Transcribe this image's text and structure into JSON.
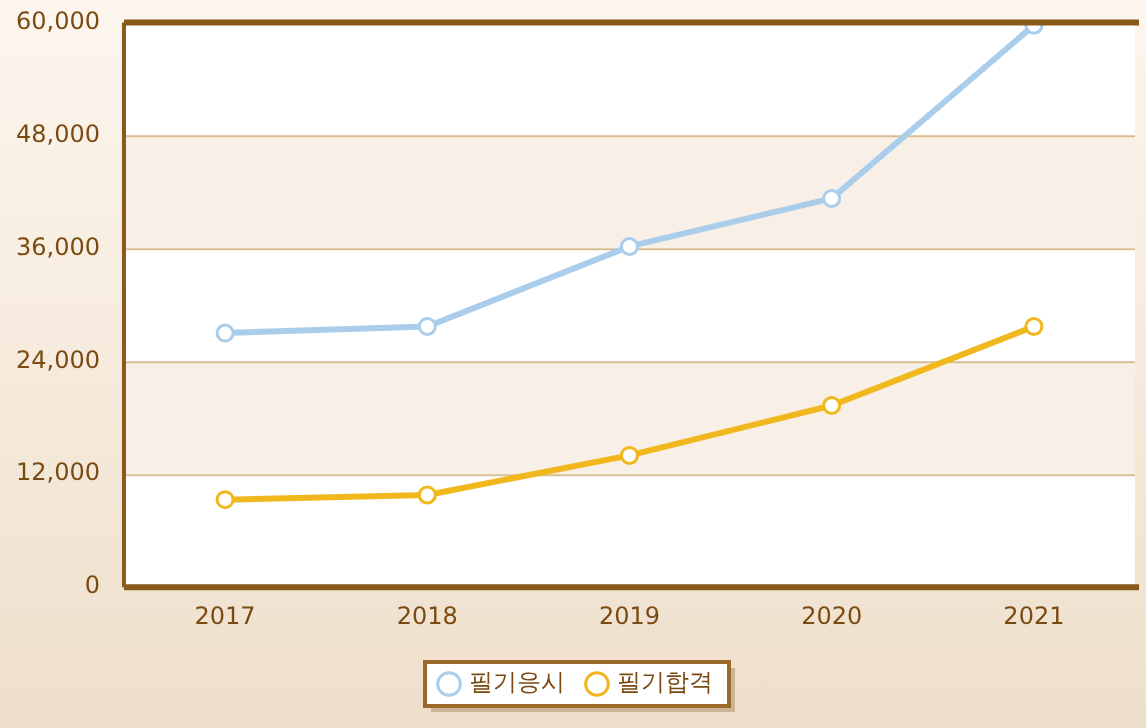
{
  "chart_data": {
    "type": "line",
    "categories": [
      "2017",
      "2018",
      "2019",
      "2020",
      "2021"
    ],
    "series": [
      {
        "name": "필기응시",
        "color": "#a9cdea",
        "values": [
          27000,
          27700,
          36200,
          41300,
          59700
        ]
      },
      {
        "name": "필기합격",
        "color": "#f0b81c",
        "values": [
          9300,
          9800,
          14000,
          19300,
          27700
        ]
      }
    ],
    "ylim": [
      0,
      60000
    ],
    "yticks": [
      {
        "value": 0,
        "label": "0"
      },
      {
        "value": 12000,
        "label": "12,000"
      },
      {
        "value": 24000,
        "label": "24,000"
      },
      {
        "value": 36000,
        "label": "36,000"
      },
      {
        "value": 48000,
        "label": "48,000"
      },
      {
        "value": 60000,
        "label": "60,000"
      }
    ],
    "grid": "y",
    "legend": "bottom",
    "marker": "circle",
    "line_style": "solid"
  }
}
